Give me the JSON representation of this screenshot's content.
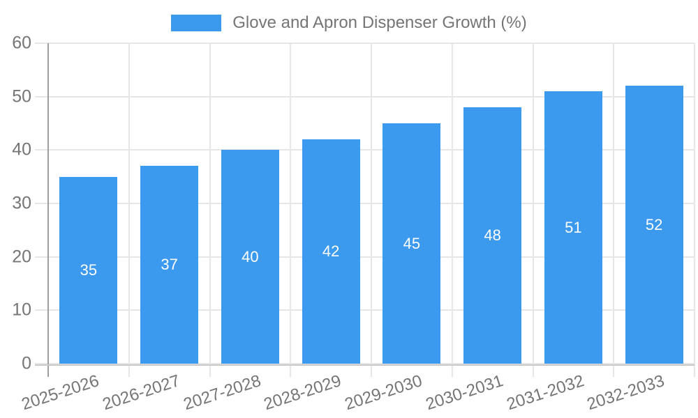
{
  "legend": {
    "label": "Glove and Apron Dispenser Growth (%)",
    "swatch_color": "#3b99ee"
  },
  "chart_data": {
    "type": "bar",
    "title": "Glove and Apron Dispenser Growth (%)",
    "series_name": "Glove and Apron Dispenser Growth (%)",
    "categories": [
      "2025-2026",
      "2026-2027",
      "2027-2028",
      "2028-2029",
      "2029-2030",
      "2030-2031",
      "2031-2032",
      "2032-2033"
    ],
    "values": [
      35,
      37,
      40,
      42,
      45,
      48,
      51,
      52
    ],
    "xlabel": "",
    "ylabel": "",
    "ylim": [
      0,
      60
    ],
    "yticks": [
      0,
      10,
      20,
      30,
      40,
      50,
      60
    ],
    "grid": true,
    "legend_position": "top",
    "value_labels": "inside-center",
    "x_tick_rotation_deg": -18,
    "colors": {
      "bar": "#3b99ee",
      "value_label": "#ffffff",
      "axis_text": "#757575",
      "gridline": "#e6e6e6",
      "y_axis_line": "#9e9e9e",
      "x_axis_line": "#c9c9c9"
    }
  }
}
